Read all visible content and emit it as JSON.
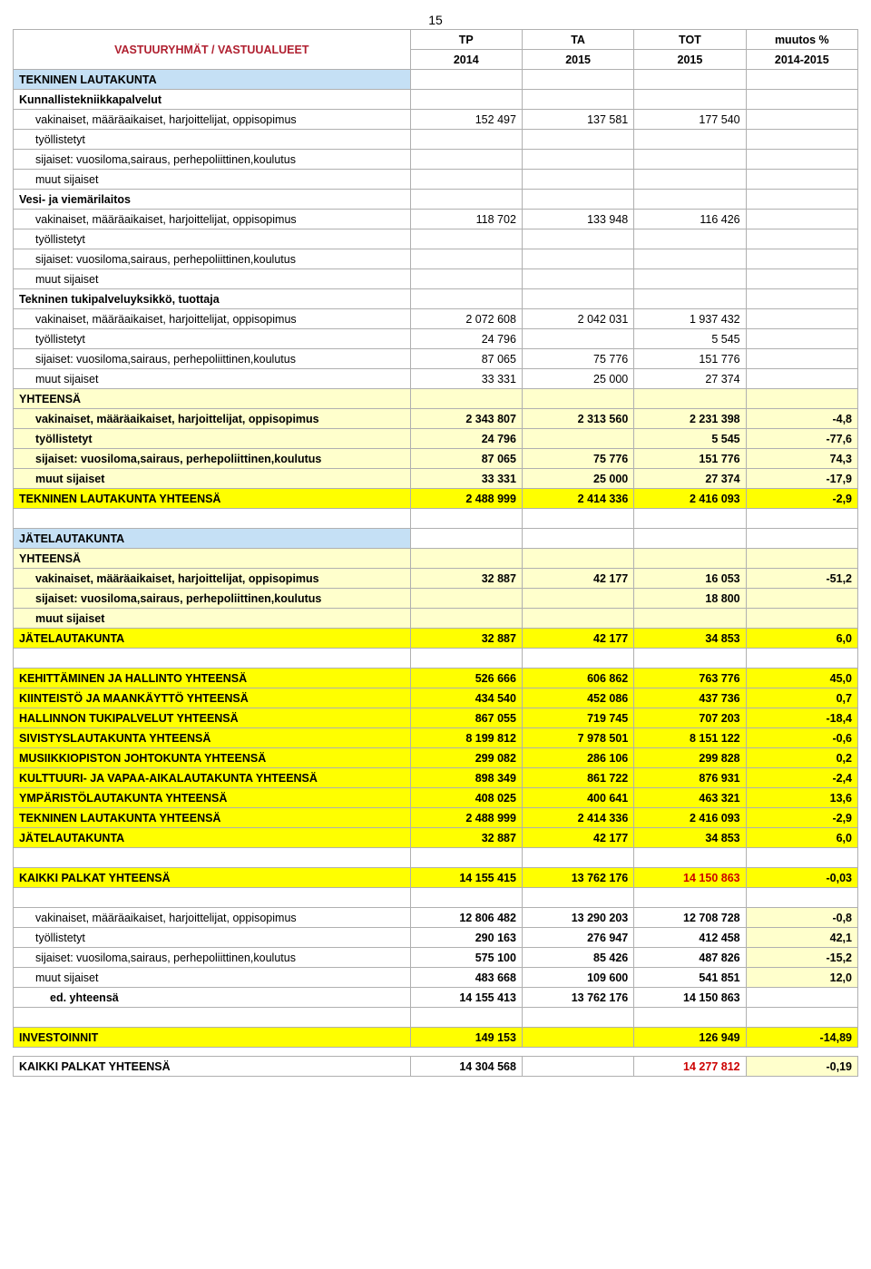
{
  "pageNumber": "15",
  "header": {
    "title": "VASTUURYHMÄT / VASTUUALUEET",
    "c1a": "TP",
    "c1b": "2014",
    "c2a": "TA",
    "c2b": "2015",
    "c3a": "TOT",
    "c3b": "2015",
    "c4a": "muutos %",
    "c4b": "2014-2015"
  },
  "tekninen": {
    "title": "TEKNINEN LAUTAKUNTA",
    "section1": {
      "title": "Kunnallistekniikkapalvelut",
      "vak": {
        "label": "vakinaiset, määräaikaiset, harjoittelijat, oppisopimus",
        "v1": "152 497",
        "v2": "137 581",
        "v3": "177 540"
      },
      "tyo": {
        "label": "työllistetyt"
      },
      "sij": {
        "label": "sijaiset: vuosiloma,sairaus, perhepoliittinen,koulutus"
      },
      "muut": {
        "label": "muut sijaiset"
      }
    },
    "section2": {
      "title": "Vesi- ja viemärilaitos",
      "vak": {
        "label": "vakinaiset, määräaikaiset, harjoittelijat, oppisopimus",
        "v1": "118 702",
        "v2": "133 948",
        "v3": "116 426"
      },
      "tyo": {
        "label": "työllistetyt"
      },
      "sij": {
        "label": "sijaiset: vuosiloma,sairaus, perhepoliittinen,koulutus"
      },
      "muut": {
        "label": "muut sijaiset"
      }
    },
    "section3": {
      "title": "Tekninen tukipalveluyksikkö, tuottaja",
      "vak": {
        "label": "vakinaiset, määräaikaiset, harjoittelijat, oppisopimus",
        "v1": "2 072 608",
        "v2": "2 042 031",
        "v3": "1 937 432"
      },
      "tyo": {
        "label": "työllistetyt",
        "v1": "24 796",
        "v3": "5 545"
      },
      "sij": {
        "label": "sijaiset: vuosiloma,sairaus, perhepoliittinen,koulutus",
        "v1": "87 065",
        "v2": "75 776",
        "v3": "151 776"
      },
      "muut": {
        "label": "muut sijaiset",
        "v1": "33 331",
        "v2": "25 000",
        "v3": "27 374"
      }
    },
    "yhteensa": {
      "title": "YHTEENSÄ",
      "vak": {
        "label": "vakinaiset, määräaikaiset, harjoittelijat, oppisopimus",
        "v1": "2 343 807",
        "v2": "2 313 560",
        "v3": "2 231 398",
        "v4": "-4,8"
      },
      "tyo": {
        "label": "työllistetyt",
        "v1": "24 796",
        "v3": "5 545",
        "v4": "-77,6"
      },
      "sij": {
        "label": "sijaiset: vuosiloma,sairaus, perhepoliittinen,koulutus",
        "v1": "87 065",
        "v2": "75 776",
        "v3": "151 776",
        "v4": "74,3"
      },
      "muut": {
        "label": "muut sijaiset",
        "v1": "33 331",
        "v2": "25 000",
        "v3": "27 374",
        "v4": "-17,9"
      }
    },
    "total": {
      "label": "TEKNINEN LAUTAKUNTA YHTEENSÄ",
      "v1": "2 488 999",
      "v2": "2 414 336",
      "v3": "2 416 093",
      "v4": "-2,9"
    }
  },
  "jate": {
    "title": "JÄTELAUTAKUNTA",
    "yhteensa": {
      "title": "YHTEENSÄ",
      "vak": {
        "label": "vakinaiset, määräaikaiset, harjoittelijat, oppisopimus",
        "v1": "32 887",
        "v2": "42 177",
        "v3": "16 053",
        "v4": "-51,2"
      },
      "sij": {
        "label": "sijaiset: vuosiloma,sairaus, perhepoliittinen,koulutus",
        "v3": "18 800"
      },
      "muut": {
        "label": "muut sijaiset"
      }
    },
    "total": {
      "label": "JÄTELAUTAKUNTA",
      "v1": "32 887",
      "v2": "42 177",
      "v3": "34 853",
      "v4": "6,0"
    }
  },
  "summary": {
    "r1": {
      "label": "KEHITTÄMINEN JA HALLINTO YHTEENSÄ",
      "v1": "526 666",
      "v2": "606 862",
      "v3": "763 776",
      "v4": "45,0"
    },
    "r2": {
      "label": "KIINTEISTÖ JA MAANKÄYTTÖ YHTEENSÄ",
      "v1": "434 540",
      "v2": "452 086",
      "v3": "437 736",
      "v4": "0,7"
    },
    "r3": {
      "label": "HALLINNON TUKIPALVELUT YHTEENSÄ",
      "v1": "867 055",
      "v2": "719 745",
      "v3": "707 203",
      "v4": "-18,4"
    },
    "r4": {
      "label": "SIVISTYSLAUTAKUNTA YHTEENSÄ",
      "v1": "8 199 812",
      "v2": "7 978 501",
      "v3": "8 151 122",
      "v4": "-0,6"
    },
    "r5": {
      "label": "MUSIIKKIOPISTON JOHTOKUNTA YHTEENSÄ",
      "v1": "299 082",
      "v2": "286 106",
      "v3": "299 828",
      "v4": "0,2"
    },
    "r6": {
      "label": "KULTTUURI- JA VAPAA-AIKALAUTAKUNTA YHTEENSÄ",
      "v1": "898 349",
      "v2": "861 722",
      "v3": "876 931",
      "v4": "-2,4"
    },
    "r7": {
      "label": "YMPÄRISTÖLAUTAKUNTA YHTEENSÄ",
      "v1": "408 025",
      "v2": "400 641",
      "v3": "463 321",
      "v4": "13,6"
    },
    "r8": {
      "label": "TEKNINEN LAUTAKUNTA YHTEENSÄ",
      "v1": "2 488 999",
      "v2": "2 414 336",
      "v3": "2 416 093",
      "v4": "-2,9"
    },
    "r9": {
      "label": "JÄTELAUTAKUNTA",
      "v1": "32 887",
      "v2": "42 177",
      "v3": "34 853",
      "v4": "6,0"
    }
  },
  "kaikki": {
    "label": "KAIKKI PALKAT YHTEENSÄ",
    "v1": "14 155 415",
    "v2": "13 762 176",
    "v3": "14 150 863",
    "v4": "-0,03"
  },
  "breakdown": {
    "vak": {
      "label": "vakinaiset, määräaikaiset, harjoittelijat, oppisopimus",
      "v1": "12 806 482",
      "v2": "13 290 203",
      "v3": "12 708 728",
      "v4": "-0,8"
    },
    "tyo": {
      "label": "työllistetyt",
      "v1": "290 163",
      "v2": "276 947",
      "v3": "412 458",
      "v4": "42,1"
    },
    "sij": {
      "label": "sijaiset: vuosiloma,sairaus, perhepoliittinen,koulutus",
      "v1": "575 100",
      "v2": "85 426",
      "v3": "487 826",
      "v4": "-15,2"
    },
    "muut": {
      "label": "muut sijaiset",
      "v1": "483 668",
      "v2": "109 600",
      "v3": "541 851",
      "v4": "12,0"
    },
    "ed": {
      "label": "ed. yhteensä",
      "v1": "14 155 413",
      "v2": "13 762 176",
      "v3": "14 150 863"
    }
  },
  "investoinnit": {
    "label": "INVESTOINNIT",
    "v1": "149 153",
    "v3": "126 949",
    "v4": "-14,89"
  },
  "kaikki2": {
    "label": "KAIKKI PALKAT YHTEENSÄ",
    "v1": "14 304 568",
    "v3": "14 277 812",
    "v4": "-0,19"
  }
}
